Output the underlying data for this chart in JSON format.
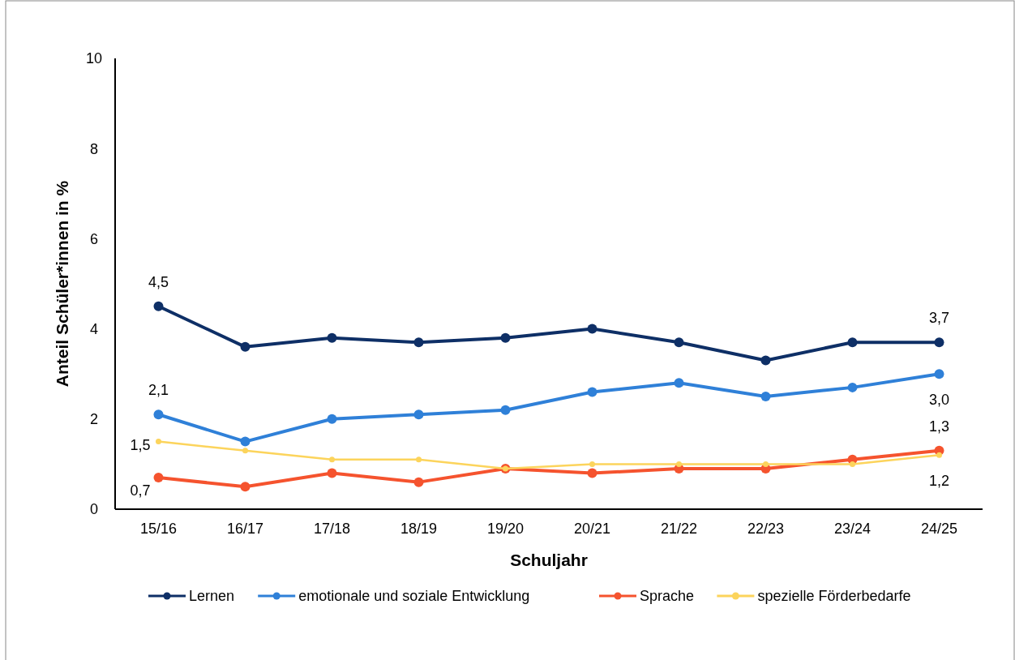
{
  "chart_data": {
    "type": "line",
    "xlabel": "Schuljahr",
    "ylabel": "Anteil Schüler*innen in %",
    "categories": [
      "15/16",
      "16/17",
      "17/18",
      "18/19",
      "19/20",
      "20/21",
      "21/22",
      "22/23",
      "23/24",
      "24/25"
    ],
    "ylim": [
      0,
      10
    ],
    "yticks": [
      0,
      2,
      4,
      6,
      8,
      10
    ],
    "grid": false,
    "legend": "bottom",
    "marker": "circle",
    "line_style": "solid",
    "series": [
      {
        "name": "Lernen",
        "color": "#0e2f66",
        "values": [
          4.5,
          3.6,
          3.8,
          3.7,
          3.8,
          4.0,
          3.7,
          3.3,
          3.7,
          3.7
        ],
        "value_labels": [
          "4,5",
          null,
          null,
          null,
          null,
          null,
          null,
          null,
          null,
          "3,7"
        ]
      },
      {
        "name": "emotionale und soziale Entwicklung",
        "color": "#2f80d8",
        "values": [
          2.1,
          1.5,
          2.0,
          2.1,
          2.2,
          2.6,
          2.8,
          2.5,
          2.7,
          3.0
        ],
        "value_labels": [
          "2,1",
          null,
          null,
          null,
          null,
          null,
          null,
          null,
          null,
          "3,0"
        ]
      },
      {
        "name": "Sprache",
        "color": "#f5532e",
        "values": [
          0.7,
          0.5,
          0.8,
          0.6,
          0.9,
          0.8,
          0.9,
          0.9,
          1.1,
          1.3
        ],
        "value_labels": [
          "0,7",
          null,
          null,
          null,
          null,
          null,
          null,
          null,
          null,
          "1,3"
        ]
      },
      {
        "name": "spezielle Förderbedarfe",
        "color": "#fcd45c",
        "values": [
          1.5,
          1.3,
          1.1,
          1.1,
          0.9,
          1.0,
          1.0,
          1.0,
          1.0,
          1.2
        ],
        "value_labels": [
          "1,5",
          null,
          null,
          null,
          null,
          null,
          null,
          null,
          null,
          "1,2"
        ]
      }
    ]
  }
}
